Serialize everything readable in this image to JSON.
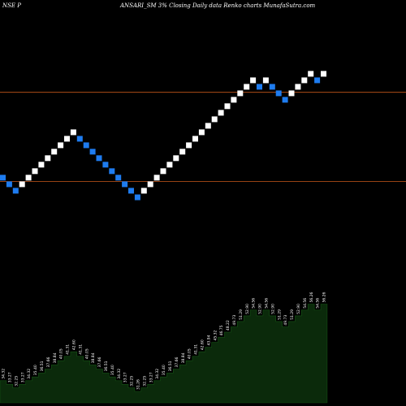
{
  "header": {
    "exchange": "NSE P",
    "title": "ANSARI_SM 3% Closing Daily data Renko charts MunafaSutra.com"
  },
  "chart_data": {
    "type": "renko",
    "title": "ANSARI_SM 3% Closing Daily data Renko charts MunafaSutra.com",
    "box_size_percent": 3,
    "reference_lines": [
      33.69,
      51.53
    ],
    "bricks": [
      {
        "dir": "down",
        "value": 34.32
      },
      {
        "dir": "down",
        "value": 33.27
      },
      {
        "dir": "down",
        "value": 32.25
      },
      {
        "dir": "up",
        "value": 33.27
      },
      {
        "dir": "up",
        "value": 34.32
      },
      {
        "dir": "up",
        "value": 35.4
      },
      {
        "dir": "up",
        "value": 36.51
      },
      {
        "dir": "up",
        "value": 37.66
      },
      {
        "dir": "up",
        "value": 38.84
      },
      {
        "dir": "up",
        "value": 40.05
      },
      {
        "dir": "up",
        "value": 41.31
      },
      {
        "dir": "up",
        "value": 42.6
      },
      {
        "dir": "down",
        "value": 41.31
      },
      {
        "dir": "down",
        "value": 40.05
      },
      {
        "dir": "down",
        "value": 38.84
      },
      {
        "dir": "down",
        "value": 37.66
      },
      {
        "dir": "down",
        "value": 36.51
      },
      {
        "dir": "down",
        "value": 35.4
      },
      {
        "dir": "down",
        "value": 34.32
      },
      {
        "dir": "down",
        "value": 33.27
      },
      {
        "dir": "down",
        "value": 32.25
      },
      {
        "dir": "down",
        "value": 31.26
      },
      {
        "dir": "up",
        "value": 32.25
      },
      {
        "dir": "up",
        "value": 33.27
      },
      {
        "dir": "up",
        "value": 34.32
      },
      {
        "dir": "up",
        "value": 35.4
      },
      {
        "dir": "up",
        "value": 36.51
      },
      {
        "dir": "up",
        "value": 37.66
      },
      {
        "dir": "up",
        "value": 38.84
      },
      {
        "dir": "up",
        "value": 40.05
      },
      {
        "dir": "up",
        "value": 41.31
      },
      {
        "dir": "up",
        "value": 42.6
      },
      {
        "dir": "up",
        "value": 43.94
      },
      {
        "dir": "up",
        "value": 45.32
      },
      {
        "dir": "up",
        "value": 46.75
      },
      {
        "dir": "up",
        "value": 48.22
      },
      {
        "dir": "up",
        "value": 49.73
      },
      {
        "dir": "up",
        "value": 51.29
      },
      {
        "dir": "up",
        "value": 52.9
      },
      {
        "dir": "up",
        "value": 54.56
      },
      {
        "dir": "down",
        "value": 52.9
      },
      {
        "dir": "up",
        "value": 54.56
      },
      {
        "dir": "down",
        "value": 52.9
      },
      {
        "dir": "down",
        "value": 51.29
      },
      {
        "dir": "down",
        "value": 49.73
      },
      {
        "dir": "up",
        "value": 51.29
      },
      {
        "dir": "up",
        "value": 52.9
      },
      {
        "dir": "up",
        "value": 54.56
      },
      {
        "dir": "up",
        "value": 56.26
      },
      {
        "dir": "down",
        "value": 54.56
      },
      {
        "dir": "up",
        "value": 56.26
      }
    ],
    "colors": {
      "up": "#ffffff",
      "down": "#1e7cf0",
      "reference_line": "#c8581a",
      "area_fill": "#0b2a0b",
      "area_stroke": "#145214",
      "background": "#000000"
    }
  }
}
